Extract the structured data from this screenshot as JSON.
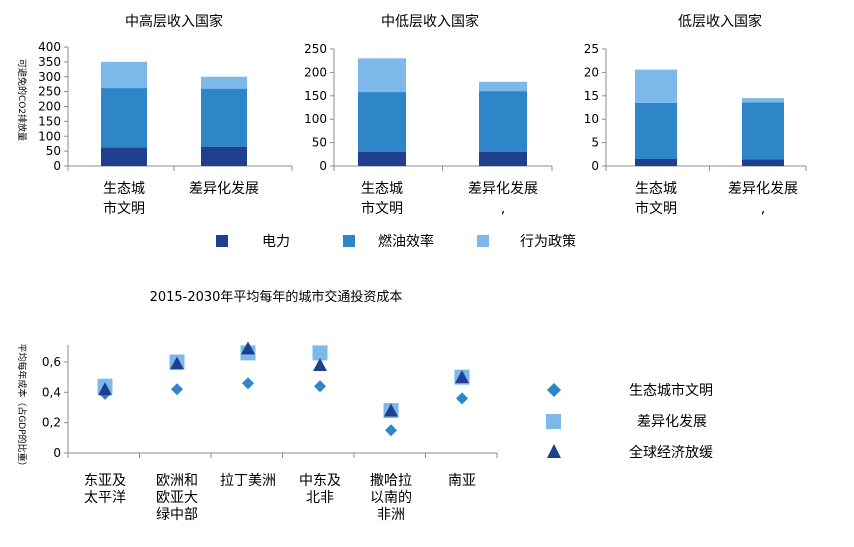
{
  "colors": {
    "electricity": "#1f3f8f",
    "fuel": "#2e86c8",
    "behavior": "#7cb8ea",
    "gray": "#8c8c8c"
  },
  "chart_data": [
    {
      "type": "bar",
      "title": "中高层收入国家",
      "ylabel": "可避免的CO2排放量",
      "yticks": [
        "0",
        "50",
        "100",
        "150",
        "200",
        "250",
        "300",
        "350",
        "400"
      ],
      "ylim": [
        0,
        400
      ],
      "categories": [
        [
          "生态城",
          "市文明"
        ],
        [
          "差异化发展"
        ]
      ],
      "series": [
        {
          "name": "电力",
          "values": [
            62,
            65
          ]
        },
        {
          "name": "燃油效率",
          "values": [
            200,
            195
          ]
        },
        {
          "name": "行为政策",
          "values": [
            88,
            40
          ]
        }
      ]
    },
    {
      "type": "bar",
      "title": "中低层收入国家",
      "yticks": [
        "0",
        "50",
        "100",
        "150",
        "200",
        "250"
      ],
      "ylim": [
        0,
        250
      ],
      "categories": [
        [
          "生态城",
          "市文明"
        ],
        [
          "差异化发展",
          ","
        ]
      ],
      "series": [
        {
          "name": "电力",
          "values": [
            30,
            30
          ]
        },
        {
          "name": "燃油效率",
          "values": [
            128,
            130
          ]
        },
        {
          "name": "行为政策",
          "values": [
            72,
            20
          ]
        }
      ]
    },
    {
      "type": "bar",
      "title": "低层收入国家",
      "yticks": [
        "0",
        "5",
        "10",
        "15",
        "20",
        "25"
      ],
      "ylim": [
        0,
        25
      ],
      "categories": [
        [
          "生态城",
          "市文明"
        ],
        [
          "差异化发展",
          ","
        ]
      ],
      "series": [
        {
          "name": "电力",
          "values": [
            1.5,
            1.4
          ]
        },
        {
          "name": "燃油效率",
          "values": [
            12,
            12.2
          ]
        },
        {
          "name": "行为政策",
          "values": [
            7.1,
            0.9
          ]
        }
      ]
    },
    {
      "type": "scatter",
      "title": "2015-2030年平均每年的城市交通投资成本",
      "ylabel": "平均每年成本（占GDP的比重）",
      "yticks": [
        "0",
        "0,2",
        "0,4",
        "0,6"
      ],
      "ylim": [
        0,
        0.7
      ],
      "categories": [
        [
          "东亚及",
          "太平洋"
        ],
        [
          "欧洲和",
          "欧亚大",
          "绿中部"
        ],
        [
          "拉丁美洲"
        ],
        [
          "中东及",
          "北非"
        ],
        [
          "撒哈拉",
          "以南的",
          "非洲"
        ],
        [
          "南亚"
        ]
      ],
      "series": [
        {
          "name": "生态城市文明",
          "marker": "diamond",
          "values": [
            0.39,
            0.42,
            0.46,
            0.44,
            0.15,
            0.36
          ]
        },
        {
          "name": "差异化发展",
          "marker": "square",
          "values": [
            0.44,
            0.6,
            0.66,
            0.66,
            0.28,
            0.5
          ]
        },
        {
          "name": "全球经济放缓",
          "marker": "triangle",
          "values": [
            0.42,
            0.59,
            0.69,
            0.58,
            0.28,
            0.5
          ]
        }
      ]
    }
  ],
  "legend_top": [
    "电力",
    "燃油效率",
    "行为政策"
  ],
  "legend_bottom": [
    "生态城市文明",
    "差异化发展",
    "全球经济放缓"
  ]
}
